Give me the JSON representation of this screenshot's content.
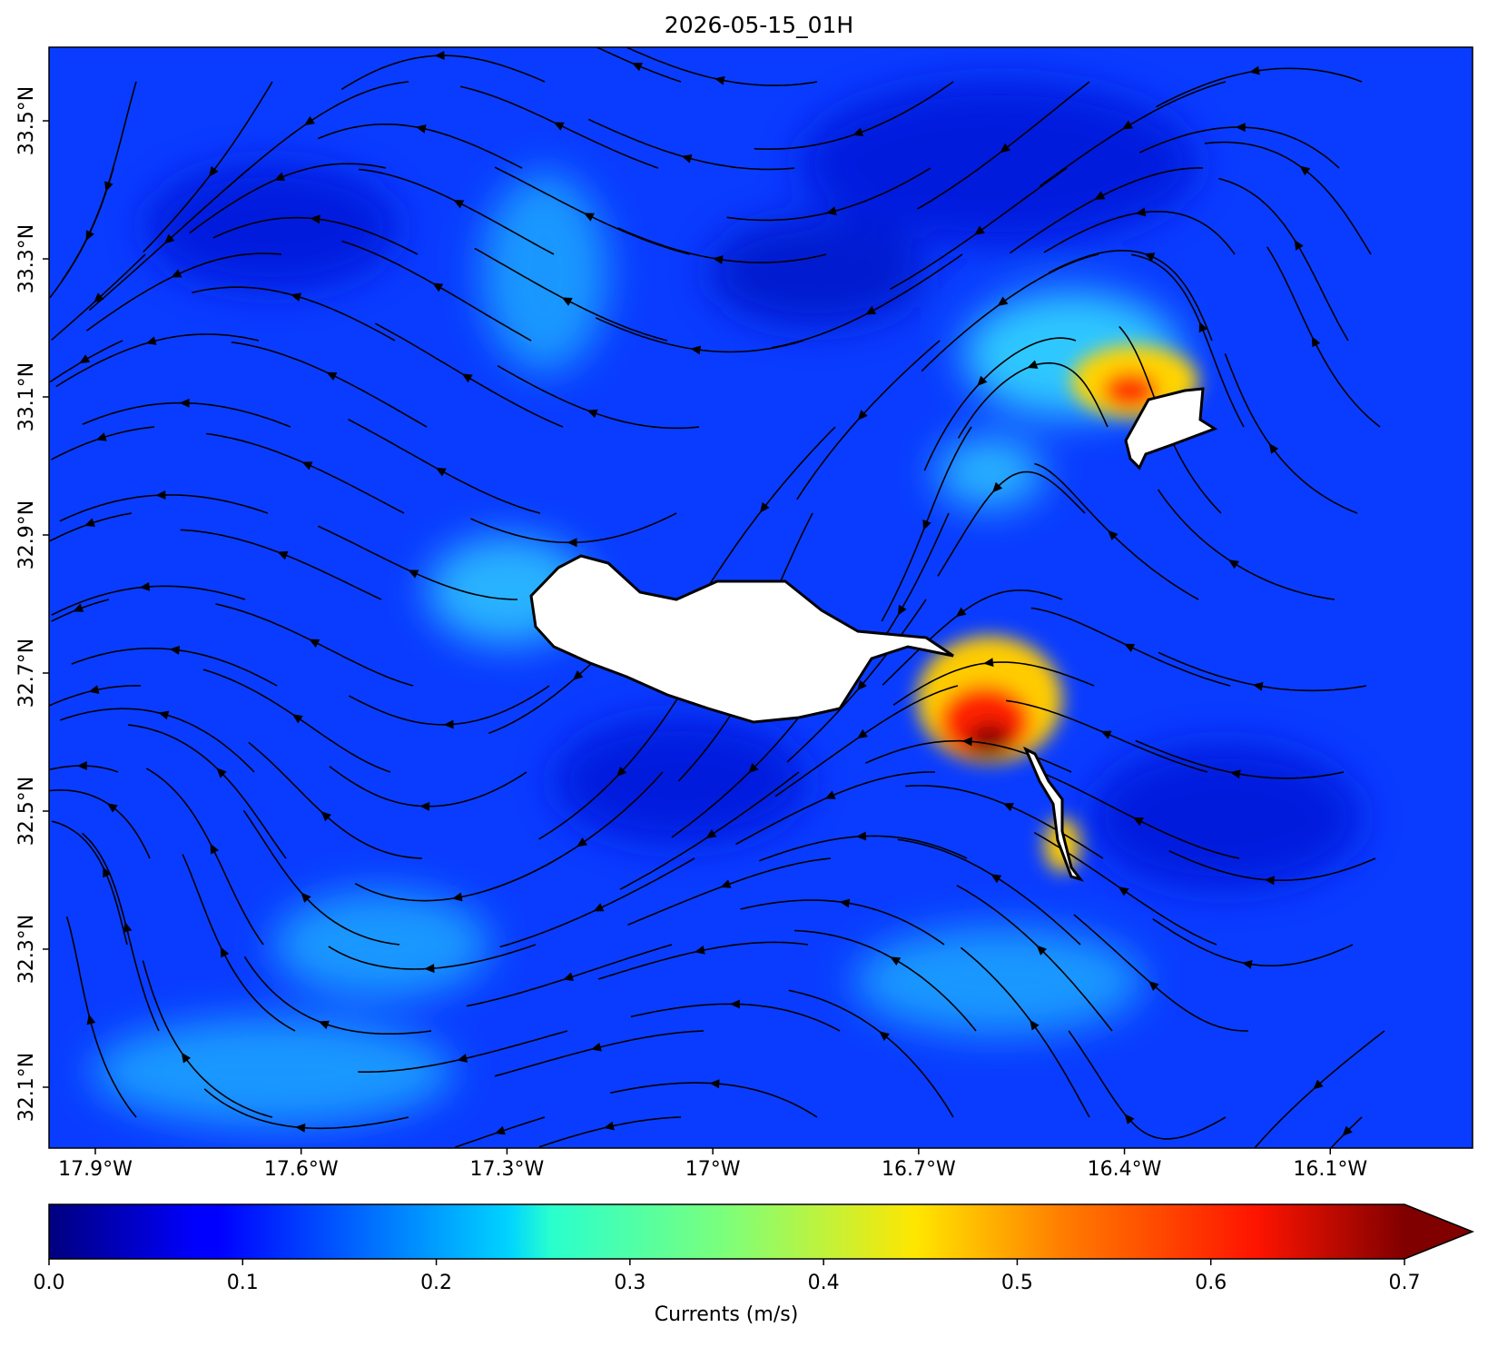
{
  "chart_data": {
    "type": "map",
    "title": "2026-05-15_01H",
    "xlim": [
      -17.9675,
      -15.8926
    ],
    "ylim": [
      32.0118,
      33.6066
    ],
    "xticks": [
      {
        "value": -17.9,
        "label": "17.9°W"
      },
      {
        "value": -17.6,
        "label": "17.6°W"
      },
      {
        "value": -17.3,
        "label": "17.3°W"
      },
      {
        "value": -17.0,
        "label": "17°W"
      },
      {
        "value": -16.7,
        "label": "16.7°W"
      },
      {
        "value": -16.4,
        "label": "16.4°W"
      },
      {
        "value": -16.1,
        "label": "16.1°W"
      }
    ],
    "yticks": [
      {
        "value": 32.1,
        "label": "32.1°N"
      },
      {
        "value": 32.3,
        "label": "32.3°N"
      },
      {
        "value": 32.5,
        "label": "32.5°N"
      },
      {
        "value": 32.7,
        "label": "32.7°N"
      },
      {
        "value": 32.9,
        "label": "32.9°N"
      },
      {
        "value": 33.1,
        "label": "33.1°N"
      },
      {
        "value": 33.3,
        "label": "33.3°N"
      },
      {
        "value": 33.5,
        "label": "33.5°N"
      }
    ],
    "colorbar": {
      "label": "Currents (m/s)",
      "clim": [
        0,
        0.7
      ],
      "ticks": [
        {
          "value": 0,
          "label": "0.0"
        },
        0.1,
        0.2,
        0.3,
        0.4,
        0.5,
        0.6,
        0.7
      ]
    }
  }
}
